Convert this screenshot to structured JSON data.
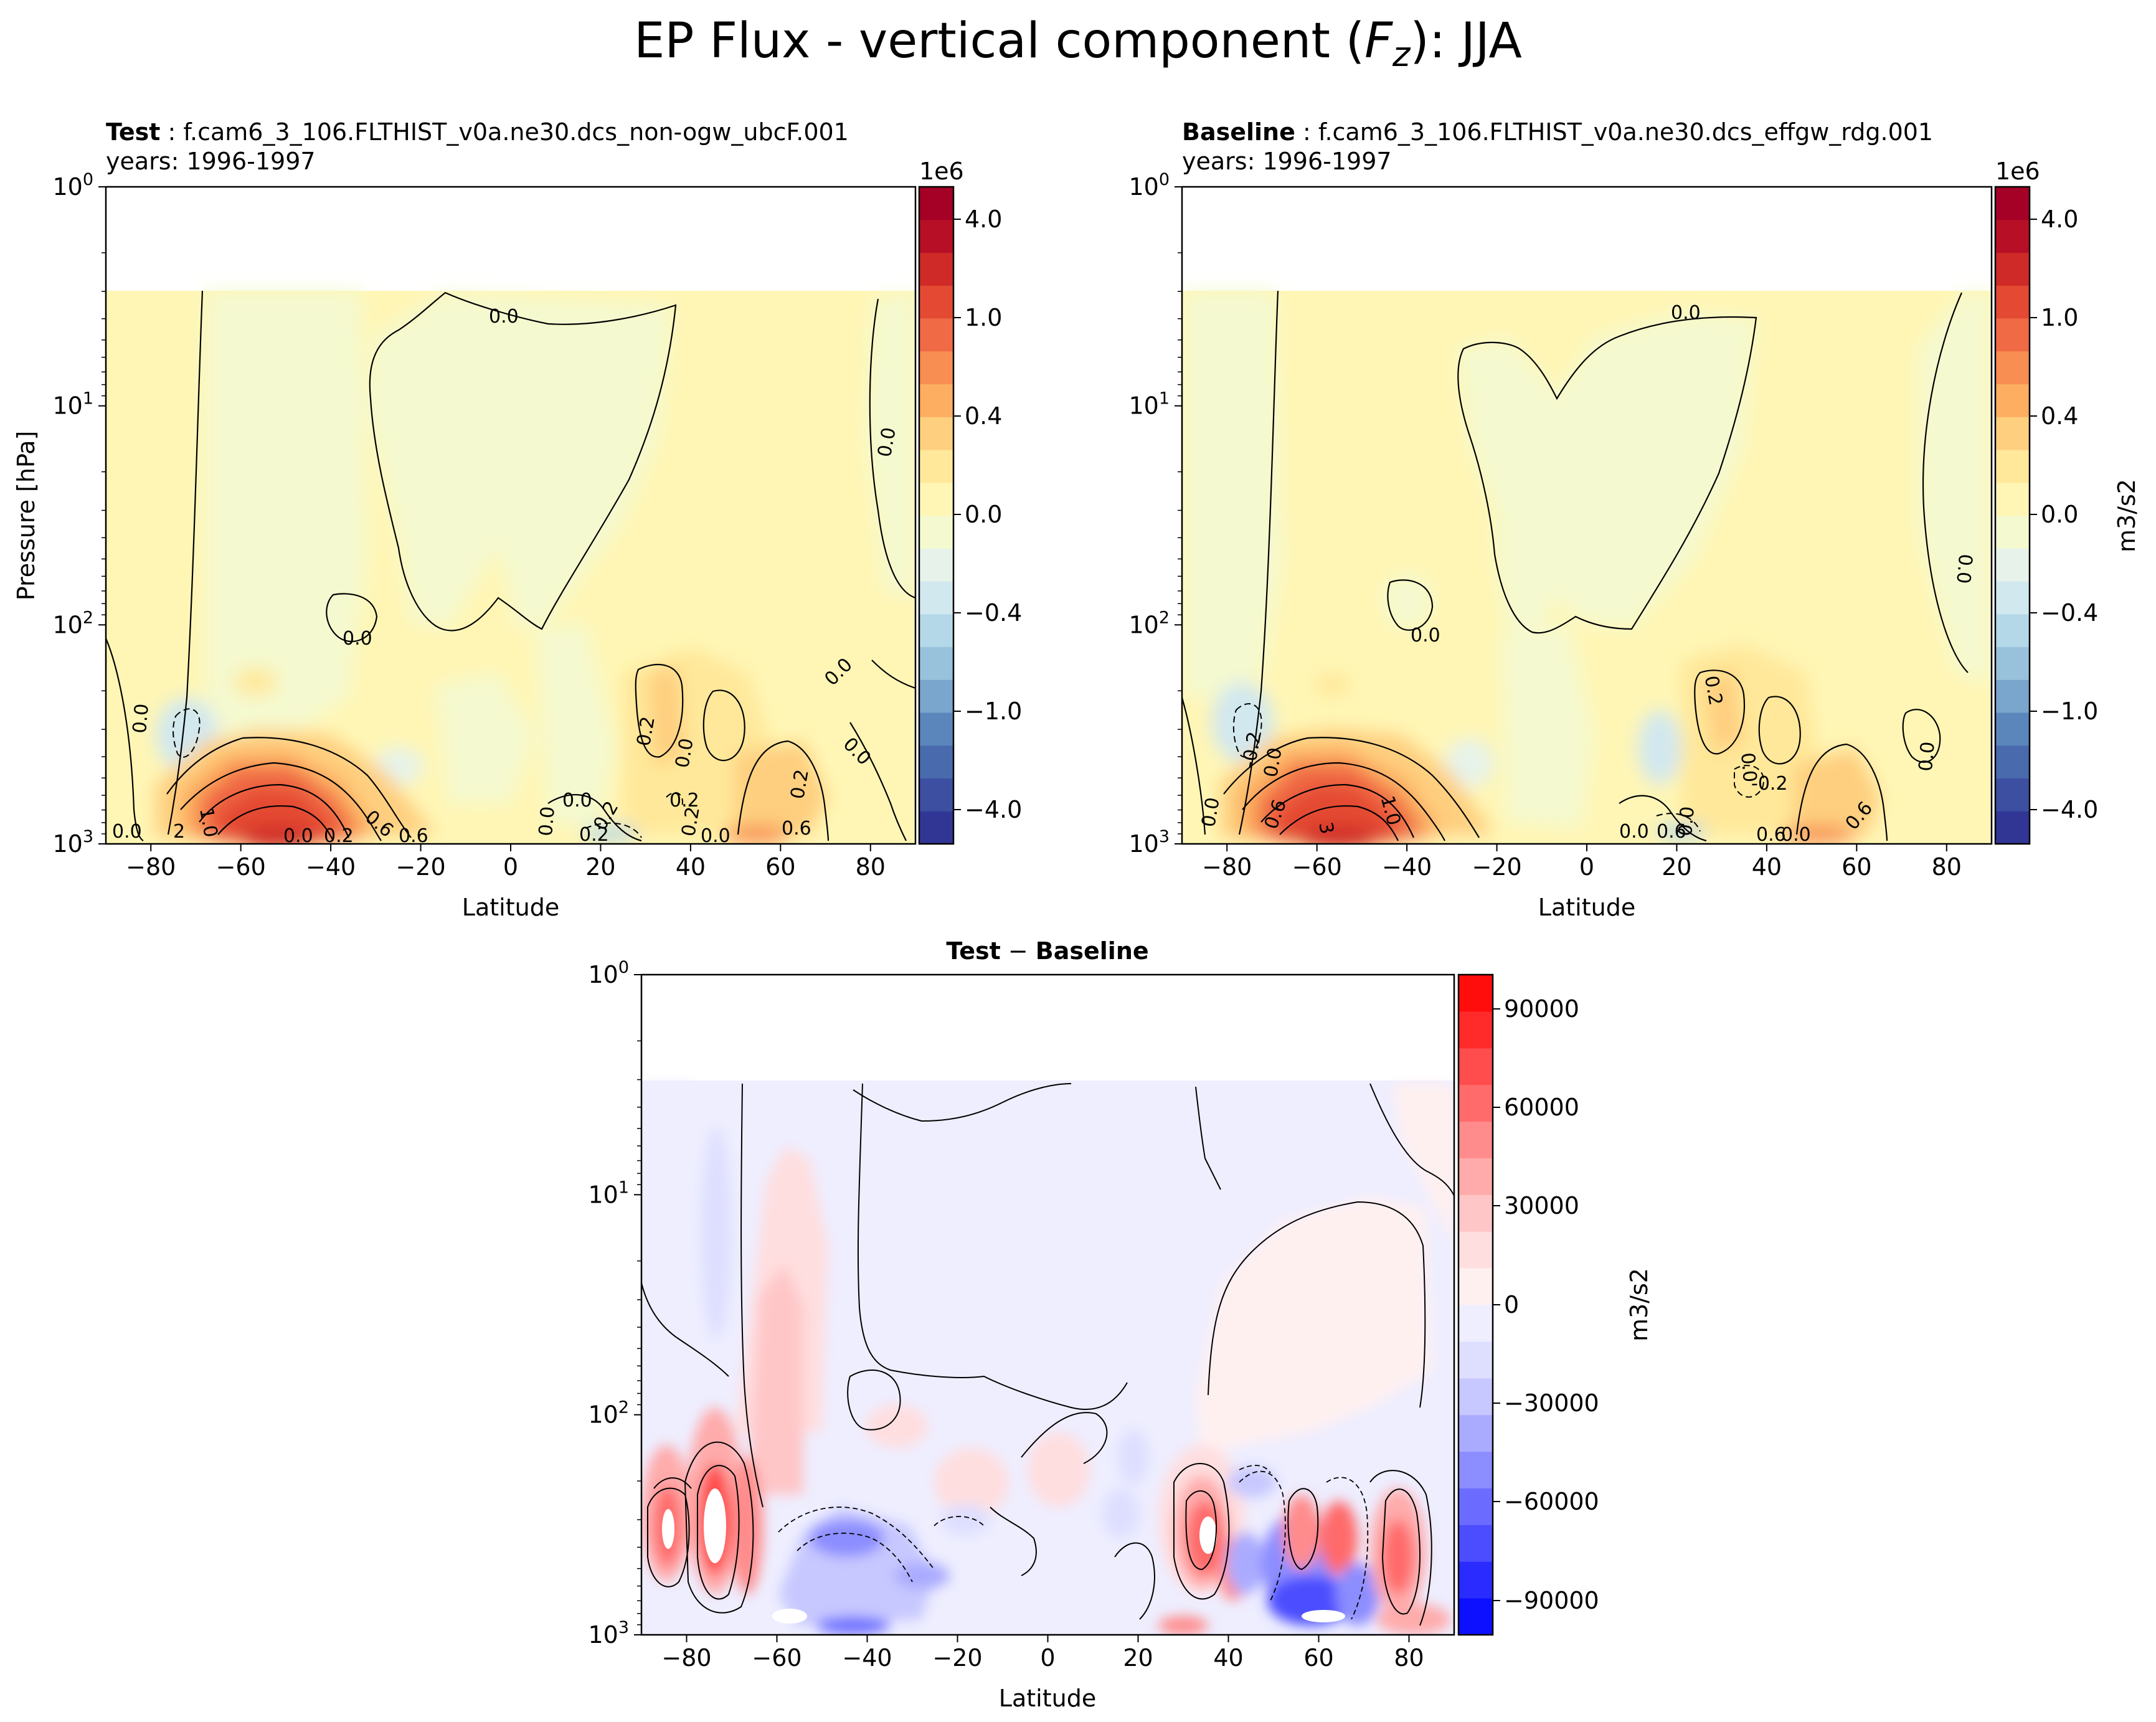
{
  "figure": {
    "suptitle": "EP Flux - vertical component (Fz): JJA",
    "suptitle_main": "EP Flux - vertical component (",
    "suptitle_symbol": "F",
    "suptitle_subscript": "z",
    "suptitle_tail": "): JJA"
  },
  "chart_data": [
    {
      "type": "heatmap",
      "panel": "test",
      "title_bold": "Test",
      "title_rest": " : f.cam6_3_106.FLTHIST_v0a.ne30.dcs_non-ogw_ubcF.001",
      "subtitle": "years: 1996-1997",
      "xlabel": "Latitude",
      "ylabel": "Pressure [hPa]",
      "xlim": [
        -90,
        90
      ],
      "ylim": [
        1000,
        1
      ],
      "yscale": "log",
      "xticks": [
        "−80",
        "−60",
        "−40",
        "−20",
        "0",
        "20",
        "40",
        "60",
        "80"
      ],
      "xtick_values": [
        -80,
        -60,
        -40,
        -20,
        0,
        20,
        40,
        60,
        80
      ],
      "yticks": [
        "10",
        "10",
        "10",
        "10"
      ],
      "ytick_exponents": [
        "0",
        "1",
        "2",
        "3"
      ],
      "ytick_values": [
        1,
        10,
        100,
        1000
      ],
      "colorbar_scale": "1e6",
      "colorbar_ticks": [
        "4.0",
        "1.0",
        "0.4",
        "0.0",
        "−0.4",
        "−1.0",
        "−4.0"
      ],
      "contour_labels": [
        "0.0",
        "0.0",
        "0.0",
        "0.0",
        "0.0",
        "0.2",
        "0.0",
        "0.2",
        "0.2",
        "0.0",
        "0.0",
        "0.6",
        "0.6",
        "0.0",
        "0.0",
        "2",
        "1.0",
        "0.0",
        "0.2",
        "0.2",
        "0.2",
        "0.0",
        "0.2",
        "0.6"
      ],
      "grid": false
    },
    {
      "type": "heatmap",
      "panel": "baseline",
      "title_bold": "Baseline",
      "title_rest": " : f.cam6_3_106.FLTHIST_v0a.ne30.dcs_effgw_rdg.001",
      "subtitle": "years: 1996-1997",
      "xlabel": "Latitude",
      "xlim": [
        -90,
        90
      ],
      "ylim": [
        1000,
        1
      ],
      "yscale": "log",
      "xticks": [
        "−80",
        "−60",
        "−40",
        "−20",
        "0",
        "20",
        "40",
        "60",
        "80"
      ],
      "xtick_values": [
        -80,
        -60,
        -40,
        -20,
        0,
        20,
        40,
        60,
        80
      ],
      "yticks": [
        "10",
        "10",
        "10",
        "10"
      ],
      "ytick_exponents": [
        "0",
        "1",
        "2",
        "3"
      ],
      "ytick_values": [
        1,
        10,
        100,
        1000
      ],
      "colorbar_scale": "1e6",
      "colorbar_label": "m3/s2",
      "colorbar_ticks": [
        "4.0",
        "1.0",
        "0.4",
        "0.0",
        "−0.4",
        "−1.0",
        "−4.0"
      ],
      "contour_labels": [
        "0.0",
        "0.0",
        "0.0",
        "0.2",
        "0.0",
        "0.0",
        "-0.2",
        "0.0",
        "-0.2",
        "0.0",
        "1.0",
        "3",
        "0.6",
        "0.6",
        "0.0",
        "0.6",
        "0.6",
        "0.0",
        "0.0"
      ],
      "grid": false
    },
    {
      "type": "heatmap",
      "panel": "difference",
      "title_bold_a": "Test",
      "title_mid": " − ",
      "title_bold_b": "Baseline",
      "xlabel": "Latitude",
      "xlim": [
        -90,
        90
      ],
      "ylim": [
        1000,
        1
      ],
      "yscale": "log",
      "xticks": [
        "−80",
        "−60",
        "−40",
        "−20",
        "0",
        "20",
        "40",
        "60",
        "80"
      ],
      "xtick_values": [
        -80,
        -60,
        -40,
        -20,
        0,
        20,
        40,
        60,
        80
      ],
      "yticks": [
        "10",
        "10",
        "10",
        "10"
      ],
      "ytick_exponents": [
        "0",
        "1",
        "2",
        "3"
      ],
      "ytick_values": [
        1,
        10,
        100,
        1000
      ],
      "colorbar_label": "m3/s2",
      "colorbar_ticks": [
        "90000",
        "60000",
        "30000",
        "0",
        "−30000",
        "−60000",
        "−90000"
      ],
      "grid": false
    }
  ],
  "colors": {
    "test_colormap": [
      "#313695",
      "#3d4fa1",
      "#4a6aae",
      "#5a86bc",
      "#7aa6cd",
      "#98c2dc",
      "#b5d8e8",
      "#d2e8ef",
      "#e7f3ea",
      "#f5f9cf",
      "#fff6b5",
      "#ffe89a",
      "#fecf7f",
      "#fdae61",
      "#f88e52",
      "#f06a45",
      "#e44a33",
      "#cf2a27",
      "#b70f26",
      "#a50026"
    ],
    "diff_colormap": [
      "#0d10ff",
      "#2a2bff",
      "#4c4dff",
      "#6b6cff",
      "#8c8dff",
      "#aaabff",
      "#c7c8ff",
      "#dedfff",
      "#eeeeff",
      "#fff0f0",
      "#ffdedf",
      "#ffc6c7",
      "#ffabab",
      "#ff8c8c",
      "#ff6b6b",
      "#ff4c4c",
      "#ff2a2a",
      "#ff0d0d"
    ],
    "contour_line": "#000000"
  }
}
